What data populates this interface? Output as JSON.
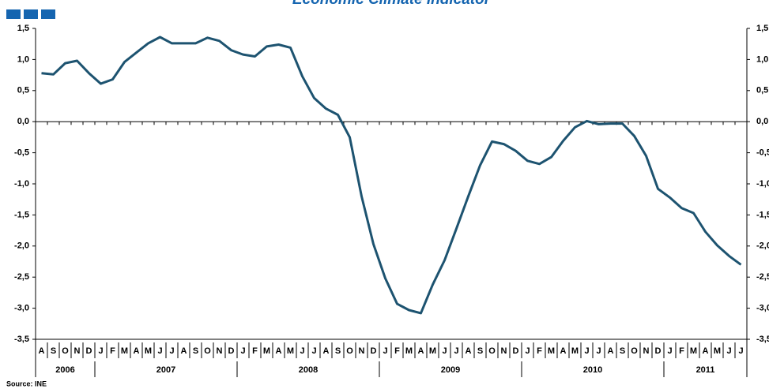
{
  "chart_data": {
    "type": "line",
    "title": "Economic Climate Indicator",
    "source": "Source: INE",
    "categories": [
      "A",
      "S",
      "O",
      "N",
      "D",
      "J",
      "F",
      "M",
      "A",
      "M",
      "J",
      "J",
      "A",
      "S",
      "O",
      "N",
      "D",
      "J",
      "F",
      "M",
      "A",
      "M",
      "J",
      "J",
      "A",
      "S",
      "O",
      "N",
      "D",
      "J",
      "F",
      "M",
      "A",
      "M",
      "J",
      "J",
      "A",
      "S",
      "O",
      "N",
      "D",
      "J",
      "F",
      "M",
      "A",
      "M",
      "J",
      "J",
      "A",
      "S",
      "O",
      "N",
      "D",
      "J",
      "F",
      "M",
      "A",
      "M",
      "J",
      "J"
    ],
    "years": [
      {
        "label": "2006",
        "months": 5
      },
      {
        "label": "2007",
        "months": 12
      },
      {
        "label": "2008",
        "months": 12
      },
      {
        "label": "2009",
        "months": 12
      },
      {
        "label": "2010",
        "months": 12
      },
      {
        "label": "2011",
        "months": 7
      }
    ],
    "series": [
      {
        "name": "Economic Climate Indicator",
        "color": "#1d5370",
        "values": [
          0.78,
          0.76,
          0.94,
          0.98,
          0.78,
          0.61,
          0.68,
          0.96,
          1.11,
          1.26,
          1.36,
          1.26,
          1.26,
          1.26,
          1.35,
          1.3,
          1.15,
          1.08,
          1.05,
          1.21,
          1.24,
          1.19,
          0.73,
          0.38,
          0.21,
          0.11,
          -0.25,
          -1.2,
          -1.97,
          -2.52,
          -2.93,
          -3.03,
          -3.08,
          -2.62,
          -2.23,
          -1.72,
          -1.2,
          -0.7,
          -0.32,
          -0.36,
          -0.47,
          -0.63,
          -0.68,
          -0.57,
          -0.31,
          -0.09,
          0.01,
          -0.04,
          -0.03,
          -0.03,
          -0.23,
          -0.55,
          -1.08,
          -1.22,
          -1.39,
          -1.47,
          -1.77,
          -1.99,
          -2.16,
          -2.3
        ]
      }
    ],
    "ylim": [
      -3.5,
      1.5
    ],
    "yticks": [
      {
        "value": -3.5,
        "label": "-3,5"
      },
      {
        "value": -3,
        "label": "-3,0"
      },
      {
        "value": -2.5,
        "label": "-2,5"
      },
      {
        "value": -2,
        "label": "-2,0"
      },
      {
        "value": -1.5,
        "label": "-1,5"
      },
      {
        "value": -1,
        "label": "-1,0"
      },
      {
        "value": -0.5,
        "label": "-0,5"
      },
      {
        "value": 0,
        "label": "0,0"
      },
      {
        "value": 0.5,
        "label": "0,5"
      },
      {
        "value": 1,
        "label": "1,0"
      },
      {
        "value": 1.5,
        "label": "1,5"
      }
    ]
  }
}
